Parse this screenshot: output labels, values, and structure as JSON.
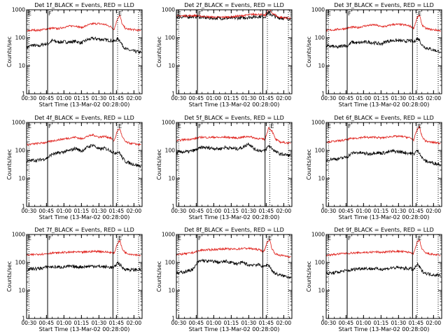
{
  "page": {
    "start_time_note": "13-Mar-02 00:28:00"
  },
  "shared_axes": {
    "xlabel": "Start Time (13-Mar-02 00:28:00)",
    "ylabel": "Counts/sec",
    "x_ticks": [
      "00:30",
      "00:45",
      "01:00",
      "01:15",
      "01:30",
      "01:45",
      "02:00"
    ],
    "x_tick_minutes": [
      30,
      45,
      60,
      75,
      90,
      105,
      120
    ],
    "x_range_minutes": [
      28,
      127
    ],
    "y_ticks": [
      "1",
      "10",
      "100",
      "1000"
    ],
    "y_tick_values": [
      1,
      10,
      100,
      1000
    ],
    "y_range": [
      1,
      1000
    ],
    "y_scale": "log"
  },
  "marker_labels": {
    "left": "E",
    "mid": "F",
    "right": "E"
  },
  "colors": {
    "events": "#000000",
    "lld": "#e0201b"
  },
  "chart_data": [
    {
      "type": "line",
      "title": "Det 1f_BLACK = Events, RED = LLD",
      "markers": {
        "e1": 30,
        "f": 46,
        "solid2": 102,
        "dot1": 106,
        "dot2": 124
      },
      "series": [
        {
          "name": "BLACK = Events",
          "color": "#000000",
          "x": [
            28,
            33,
            38,
            43,
            46,
            50,
            55,
            60,
            65,
            70,
            75,
            80,
            85,
            90,
            95,
            100,
            103,
            106,
            108,
            110,
            113,
            117,
            122,
            126
          ],
          "y": [
            45,
            55,
            50,
            60,
            60,
            80,
            70,
            72,
            70,
            75,
            65,
            85,
            95,
            90,
            85,
            80,
            75,
            90,
            80,
            55,
            40,
            35,
            32,
            30
          ]
        },
        {
          "name": "RED = LLD",
          "color": "#e0201b",
          "x": [
            28,
            33,
            38,
            43,
            46,
            50,
            55,
            60,
            65,
            70,
            75,
            80,
            85,
            90,
            95,
            100,
            103,
            106,
            108,
            110,
            113,
            117,
            122,
            126
          ],
          "y": [
            170,
            190,
            185,
            200,
            210,
            220,
            210,
            240,
            260,
            270,
            230,
            280,
            320,
            320,
            300,
            250,
            200,
            500,
            620,
            300,
            210,
            200,
            190,
            180
          ]
        }
      ]
    },
    {
      "type": "line",
      "title": "Det 2f_BLACK = Events, RED = LLD",
      "markers": {
        "e1": 30,
        "f": 46,
        "solid2": 102,
        "dot1": 106,
        "dot2": 124
      },
      "series": [
        {
          "name": "BLACK = Events",
          "color": "#000000",
          "x": [
            28,
            35,
            45,
            55,
            65,
            75,
            85,
            95,
            100,
            104,
            107,
            110,
            115,
            120,
            126
          ],
          "y": [
            560,
            560,
            570,
            510,
            500,
            500,
            520,
            560,
            580,
            560,
            820,
            650,
            520,
            500,
            480
          ]
        },
        {
          "name": "RED = LLD",
          "color": "#e0201b",
          "x": [
            28,
            35,
            45,
            55,
            65,
            75,
            85,
            95,
            100,
            104,
            107,
            110,
            115,
            120,
            126
          ],
          "y": [
            600,
            610,
            620,
            560,
            540,
            560,
            620,
            700,
            680,
            620,
            1050,
            780,
            560,
            520,
            500
          ]
        }
      ]
    },
    {
      "type": "line",
      "title": "Det 3f_BLACK = Events, RED = LLD",
      "markers": {
        "e1": 30,
        "f": 46,
        "solid2": 102,
        "dot1": 106,
        "dot2": 124
      },
      "series": [
        {
          "name": "BLACK = Events",
          "color": "#000000",
          "x": [
            28,
            33,
            38,
            43,
            46,
            50,
            55,
            60,
            65,
            70,
            75,
            80,
            85,
            90,
            95,
            100,
            103,
            106,
            108,
            110,
            113,
            117,
            122,
            126
          ],
          "y": [
            50,
            50,
            45,
            55,
            50,
            70,
            65,
            70,
            70,
            65,
            60,
            75,
            80,
            80,
            75,
            80,
            70,
            95,
            85,
            55,
            45,
            40,
            35,
            32
          ]
        },
        {
          "name": "RED = LLD",
          "color": "#e0201b",
          "x": [
            28,
            33,
            38,
            43,
            46,
            50,
            55,
            60,
            65,
            70,
            75,
            80,
            85,
            90,
            95,
            100,
            103,
            106,
            108,
            110,
            113,
            117,
            122,
            126
          ],
          "y": [
            180,
            190,
            200,
            210,
            220,
            240,
            230,
            260,
            280,
            290,
            250,
            260,
            300,
            300,
            290,
            260,
            220,
            520,
            640,
            300,
            220,
            200,
            190,
            180
          ]
        }
      ]
    },
    {
      "type": "line",
      "title": "Det 4f_BLACK = Events, RED = LLD",
      "markers": {
        "e1": 30,
        "f": 46,
        "solid2": 102,
        "dot1": 106,
        "dot2": 124
      },
      "series": [
        {
          "name": "BLACK = Events",
          "color": "#000000",
          "x": [
            28,
            33,
            38,
            43,
            46,
            50,
            55,
            60,
            65,
            70,
            75,
            80,
            85,
            90,
            95,
            100,
            103,
            106,
            108,
            110,
            113,
            117,
            122,
            126
          ],
          "y": [
            40,
            45,
            45,
            50,
            55,
            75,
            80,
            90,
            100,
            120,
            95,
            130,
            160,
            110,
            120,
            100,
            80,
            90,
            80,
            55,
            40,
            35,
            30,
            28
          ]
        },
        {
          "name": "RED = LLD",
          "color": "#e0201b",
          "x": [
            28,
            33,
            38,
            43,
            46,
            50,
            55,
            60,
            65,
            70,
            75,
            80,
            85,
            90,
            95,
            100,
            103,
            106,
            108,
            110,
            113,
            117,
            122,
            126
          ],
          "y": [
            160,
            170,
            180,
            190,
            200,
            220,
            240,
            260,
            280,
            300,
            260,
            320,
            360,
            300,
            320,
            280,
            220,
            520,
            600,
            300,
            200,
            180,
            170,
            160
          ]
        }
      ]
    },
    {
      "type": "line",
      "title": "Det 5f_BLACK = Events, RED = LLD",
      "markers": {
        "e1": 30,
        "f": 46,
        "solid2": 104,
        "dot1": 108,
        "dot2": 124
      },
      "series": [
        {
          "name": "BLACK = Events",
          "color": "#000000",
          "x": [
            28,
            33,
            38,
            43,
            46,
            50,
            55,
            60,
            65,
            70,
            75,
            80,
            85,
            90,
            95,
            100,
            104,
            107,
            110,
            113,
            117,
            122,
            126
          ],
          "y": [
            80,
            90,
            90,
            100,
            110,
            130,
            125,
            120,
            115,
            130,
            120,
            115,
            130,
            180,
            110,
            100,
            95,
            150,
            120,
            90,
            75,
            70,
            65
          ]
        },
        {
          "name": "RED = LLD",
          "color": "#e0201b",
          "x": [
            28,
            33,
            38,
            43,
            46,
            50,
            55,
            60,
            65,
            70,
            75,
            80,
            85,
            90,
            95,
            100,
            104,
            107,
            110,
            113,
            117,
            122,
            126
          ],
          "y": [
            220,
            240,
            250,
            260,
            280,
            300,
            290,
            300,
            290,
            300,
            290,
            280,
            300,
            320,
            280,
            260,
            250,
            650,
            500,
            250,
            200,
            190,
            180
          ]
        }
      ]
    },
    {
      "type": "line",
      "title": "Det 6f_BLACK = Events, RED = LLD",
      "markers": {
        "e1": 30,
        "f": 46,
        "solid2": 102,
        "dot1": 106,
        "dot2": 124
      },
      "series": [
        {
          "name": "BLACK = Events",
          "color": "#000000",
          "x": [
            28,
            33,
            38,
            43,
            46,
            50,
            55,
            60,
            65,
            70,
            75,
            80,
            85,
            90,
            95,
            100,
            103,
            106,
            108,
            110,
            113,
            117,
            122,
            126
          ],
          "y": [
            45,
            50,
            50,
            55,
            60,
            80,
            85,
            80,
            75,
            85,
            80,
            85,
            95,
            90,
            85,
            80,
            75,
            100,
            85,
            55,
            42,
            38,
            34,
            32
          ]
        },
        {
          "name": "RED = LLD",
          "color": "#e0201b",
          "x": [
            28,
            33,
            38,
            43,
            46,
            50,
            55,
            60,
            65,
            70,
            75,
            80,
            85,
            90,
            95,
            100,
            103,
            106,
            108,
            110,
            113,
            117,
            122,
            126
          ],
          "y": [
            200,
            210,
            220,
            230,
            250,
            270,
            280,
            300,
            290,
            300,
            280,
            300,
            320,
            320,
            310,
            280,
            240,
            560,
            700,
            320,
            220,
            200,
            190,
            180
          ]
        }
      ]
    },
    {
      "type": "line",
      "title": "Det 7f_BLACK = Events, RED = LLD",
      "markers": {
        "e1": 30,
        "f": 46,
        "solid2": 102,
        "dot1": 106,
        "dot2": 124
      },
      "series": [
        {
          "name": "BLACK = Events",
          "color": "#000000",
          "x": [
            28,
            33,
            38,
            43,
            46,
            50,
            55,
            60,
            65,
            70,
            75,
            80,
            85,
            90,
            95,
            100,
            103,
            106,
            108,
            110,
            113,
            117,
            122,
            126
          ],
          "y": [
            55,
            60,
            60,
            65,
            70,
            70,
            68,
            70,
            72,
            70,
            70,
            72,
            75,
            72,
            70,
            68,
            65,
            100,
            85,
            65,
            58,
            55,
            55,
            55
          ]
        },
        {
          "name": "RED = LLD",
          "color": "#e0201b",
          "x": [
            28,
            33,
            38,
            43,
            46,
            50,
            55,
            60,
            65,
            70,
            75,
            80,
            85,
            90,
            95,
            100,
            103,
            106,
            108,
            110,
            113,
            117,
            122,
            126
          ],
          "y": [
            180,
            190,
            200,
            200,
            210,
            220,
            220,
            230,
            230,
            240,
            230,
            240,
            250,
            250,
            240,
            230,
            210,
            500,
            600,
            300,
            220,
            200,
            190,
            180
          ]
        }
      ]
    },
    {
      "type": "line",
      "title": "Det 8f_BLACK = Events, RED = LLD",
      "markers": {
        "e1": 30,
        "f": 46,
        "solid2": 102,
        "dot1": 106,
        "dot2": 124
      },
      "series": [
        {
          "name": "BLACK = Events",
          "color": "#000000",
          "x": [
            28,
            33,
            38,
            43,
            46,
            50,
            55,
            60,
            65,
            70,
            75,
            80,
            85,
            90,
            95,
            100,
            103,
            106,
            108,
            110,
            113,
            117,
            122,
            126
          ],
          "y": [
            40,
            45,
            50,
            60,
            100,
            120,
            110,
            110,
            100,
            110,
            100,
            90,
            100,
            80,
            85,
            80,
            70,
            85,
            75,
            50,
            40,
            35,
            32,
            30
          ]
        },
        {
          "name": "RED = LLD",
          "color": "#e0201b",
          "x": [
            28,
            33,
            38,
            43,
            46,
            50,
            55,
            60,
            65,
            70,
            75,
            80,
            85,
            90,
            95,
            100,
            103,
            106,
            108,
            110,
            113,
            117,
            122,
            126
          ],
          "y": [
            190,
            200,
            210,
            230,
            250,
            280,
            280,
            290,
            300,
            310,
            300,
            300,
            320,
            320,
            300,
            280,
            240,
            560,
            650,
            300,
            200,
            180,
            170,
            160
          ]
        }
      ]
    },
    {
      "type": "line",
      "title": "Det 9f_BLACK = Events, RED = LLD",
      "markers": {
        "e1": 30,
        "f": 46,
        "solid2": 102,
        "dot1": 106,
        "dot2": 124
      },
      "series": [
        {
          "name": "BLACK = Events",
          "color": "#000000",
          "x": [
            28,
            33,
            38,
            43,
            46,
            50,
            55,
            60,
            65,
            70,
            75,
            80,
            85,
            90,
            95,
            100,
            103,
            106,
            108,
            110,
            113,
            117,
            122,
            126
          ],
          "y": [
            40,
            42,
            45,
            50,
            50,
            55,
            60,
            62,
            60,
            60,
            58,
            60,
            65,
            65,
            62,
            60,
            55,
            85,
            70,
            50,
            42,
            38,
            36,
            35
          ]
        },
        {
          "name": "RED = LLD",
          "color": "#e0201b",
          "x": [
            28,
            33,
            38,
            43,
            46,
            50,
            55,
            60,
            65,
            70,
            75,
            80,
            85,
            90,
            95,
            100,
            103,
            106,
            108,
            110,
            113,
            117,
            122,
            126
          ],
          "y": [
            180,
            190,
            200,
            210,
            210,
            220,
            220,
            230,
            230,
            240,
            230,
            240,
            250,
            250,
            240,
            230,
            210,
            520,
            650,
            300,
            220,
            200,
            190,
            180
          ]
        }
      ]
    }
  ]
}
